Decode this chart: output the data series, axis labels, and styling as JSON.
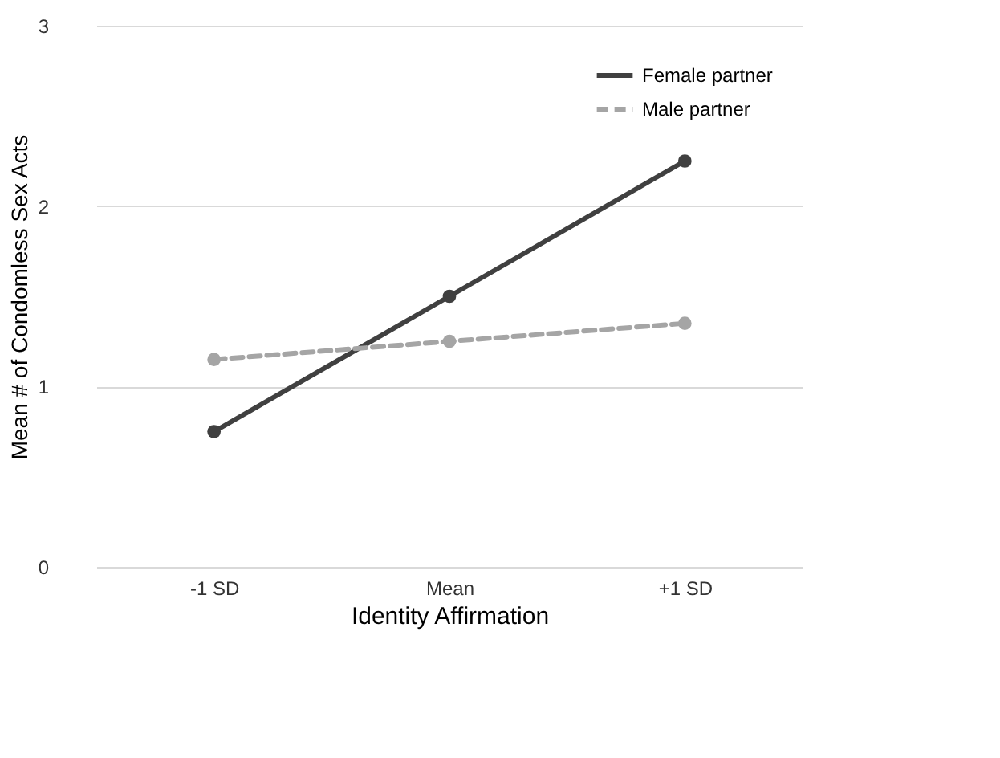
{
  "chart_data": {
    "type": "line",
    "xlabel": "Identity Affirmation",
    "ylabel": "Mean # of Condomless Sex Acts",
    "categories": [
      "-1 SD",
      "Mean",
      "+1 SD"
    ],
    "series": [
      {
        "name": "Female partner",
        "color": "#404040",
        "values": [
          0.75,
          1.5,
          2.25
        ],
        "line_style": "solid"
      },
      {
        "name": "Male partner",
        "color": "#a5a5a5",
        "values": [
          1.15,
          1.25,
          1.35
        ],
        "line_style": "dashed"
      }
    ],
    "ylim": [
      0,
      3
    ],
    "yticks": [
      0,
      1,
      2,
      3
    ],
    "grid": "y",
    "legend": "top right",
    "marker": "circle"
  }
}
